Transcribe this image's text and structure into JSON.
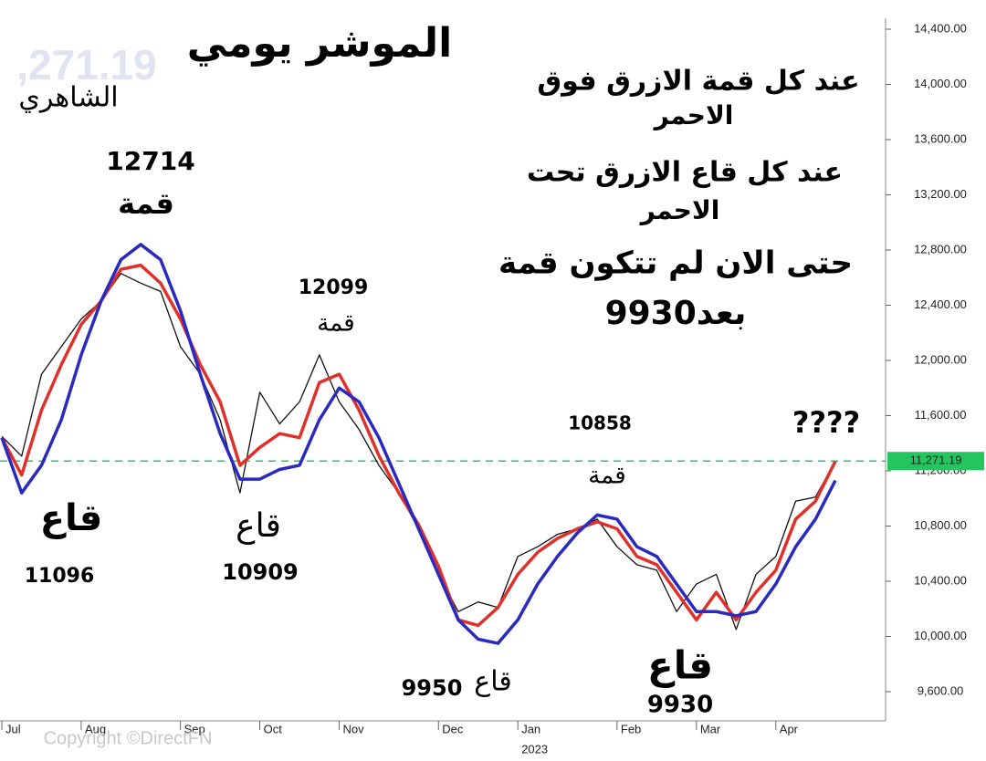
{
  "chart_data": {
    "type": "line",
    "title": "الموشر يومي",
    "categories": [
      "Jul",
      null,
      null,
      null,
      "Aug",
      null,
      null,
      null,
      null,
      "Sep",
      null,
      null,
      null,
      "Oct",
      null,
      null,
      null,
      "Nov",
      null,
      null,
      null,
      null,
      "Dec",
      null,
      null,
      null,
      "Jan",
      null,
      null,
      null,
      null,
      "Feb",
      null,
      null,
      null,
      "Mar",
      null,
      null,
      null,
      "Apr",
      null,
      null,
      null
    ],
    "year_label": "2023",
    "series": [
      {
        "name": "price",
        "color": "#111111",
        "values": [
          11450,
          11306,
          11900,
          12100,
          12300,
          12430,
          12630,
          12560,
          12500,
          12100,
          11900,
          11570,
          11040,
          11770,
          11540,
          11700,
          12040,
          11700,
          11500,
          11240,
          11040,
          10780,
          10450,
          10180,
          10250,
          10210,
          10580,
          10650,
          10740,
          10780,
          10850,
          10650,
          10520,
          10480,
          10180,
          10380,
          10450,
          10050,
          10450,
          10580,
          10980,
          11010,
          11270
        ]
      },
      {
        "name": "red",
        "color": "#e0302a",
        "values": [
          11440,
          11170,
          11640,
          11970,
          12260,
          12430,
          12660,
          12690,
          12560,
          12300,
          11970,
          11700,
          11240,
          11370,
          11470,
          11440,
          11840,
          11900,
          11640,
          11310,
          11040,
          10810,
          10510,
          10120,
          10080,
          10210,
          10450,
          10610,
          10710,
          10780,
          10830,
          10780,
          10580,
          10520,
          10320,
          10120,
          10320,
          10120,
          10320,
          10480,
          10850,
          10980,
          11270
        ]
      },
      {
        "name": "blue",
        "color": "#2a2ac0",
        "values": [
          11440,
          11040,
          11240,
          11570,
          12040,
          12430,
          12730,
          12840,
          12730,
          12360,
          11900,
          11470,
          11140,
          11140,
          11210,
          11240,
          11570,
          11800,
          11700,
          11440,
          11110,
          10780,
          10450,
          10120,
          9980,
          9950,
          10120,
          10380,
          10580,
          10750,
          10880,
          10850,
          10650,
          10580,
          10380,
          10180,
          10180,
          10150,
          10180,
          10380,
          10650,
          10850,
          11130
        ]
      }
    ],
    "ylim": [
      9400,
      14500
    ],
    "yticks": [
      {
        "value": 9600,
        "label": "9,600.00"
      },
      {
        "value": 10000,
        "label": "10,000.00"
      },
      {
        "value": 10400,
        "label": "10,400.00"
      },
      {
        "value": 10800,
        "label": "10,800.00"
      },
      {
        "value": 11200,
        "label": "11,200.00"
      },
      {
        "value": 11600,
        "label": "11,600.00"
      },
      {
        "value": 12000,
        "label": "12,000.00"
      },
      {
        "value": 12400,
        "label": "12,400.00"
      },
      {
        "value": 12800,
        "label": "12,800.00"
      },
      {
        "value": 13200,
        "label": "13,200.00"
      },
      {
        "value": 13600,
        "label": "13,600.00"
      },
      {
        "value": 14000,
        "label": "14,000.00"
      },
      {
        "value": 14400,
        "label": "14,400.00"
      }
    ],
    "reference_line": {
      "value": 11271.19,
      "label": "11,271.19",
      "color": "#22c55e"
    },
    "annotations": [
      "الموشر يومي",
      "الشاهري",
      "12714",
      "قمة",
      "12099",
      "قمة",
      "عند كل قمة الازرق فوق",
      "الاحمر",
      "عند كل قاع الازرق تحت",
      "الاحمر",
      "حتى الان لم تتكون قمة",
      "بعد9930",
      "10858",
      "قمة",
      "????",
      "قاع",
      "11096",
      "قاع",
      "10909",
      "قاع",
      "9950",
      "قاع",
      "9930"
    ],
    "watermark": ",271.19",
    "copyright": "Copyright ©DirectFN"
  }
}
